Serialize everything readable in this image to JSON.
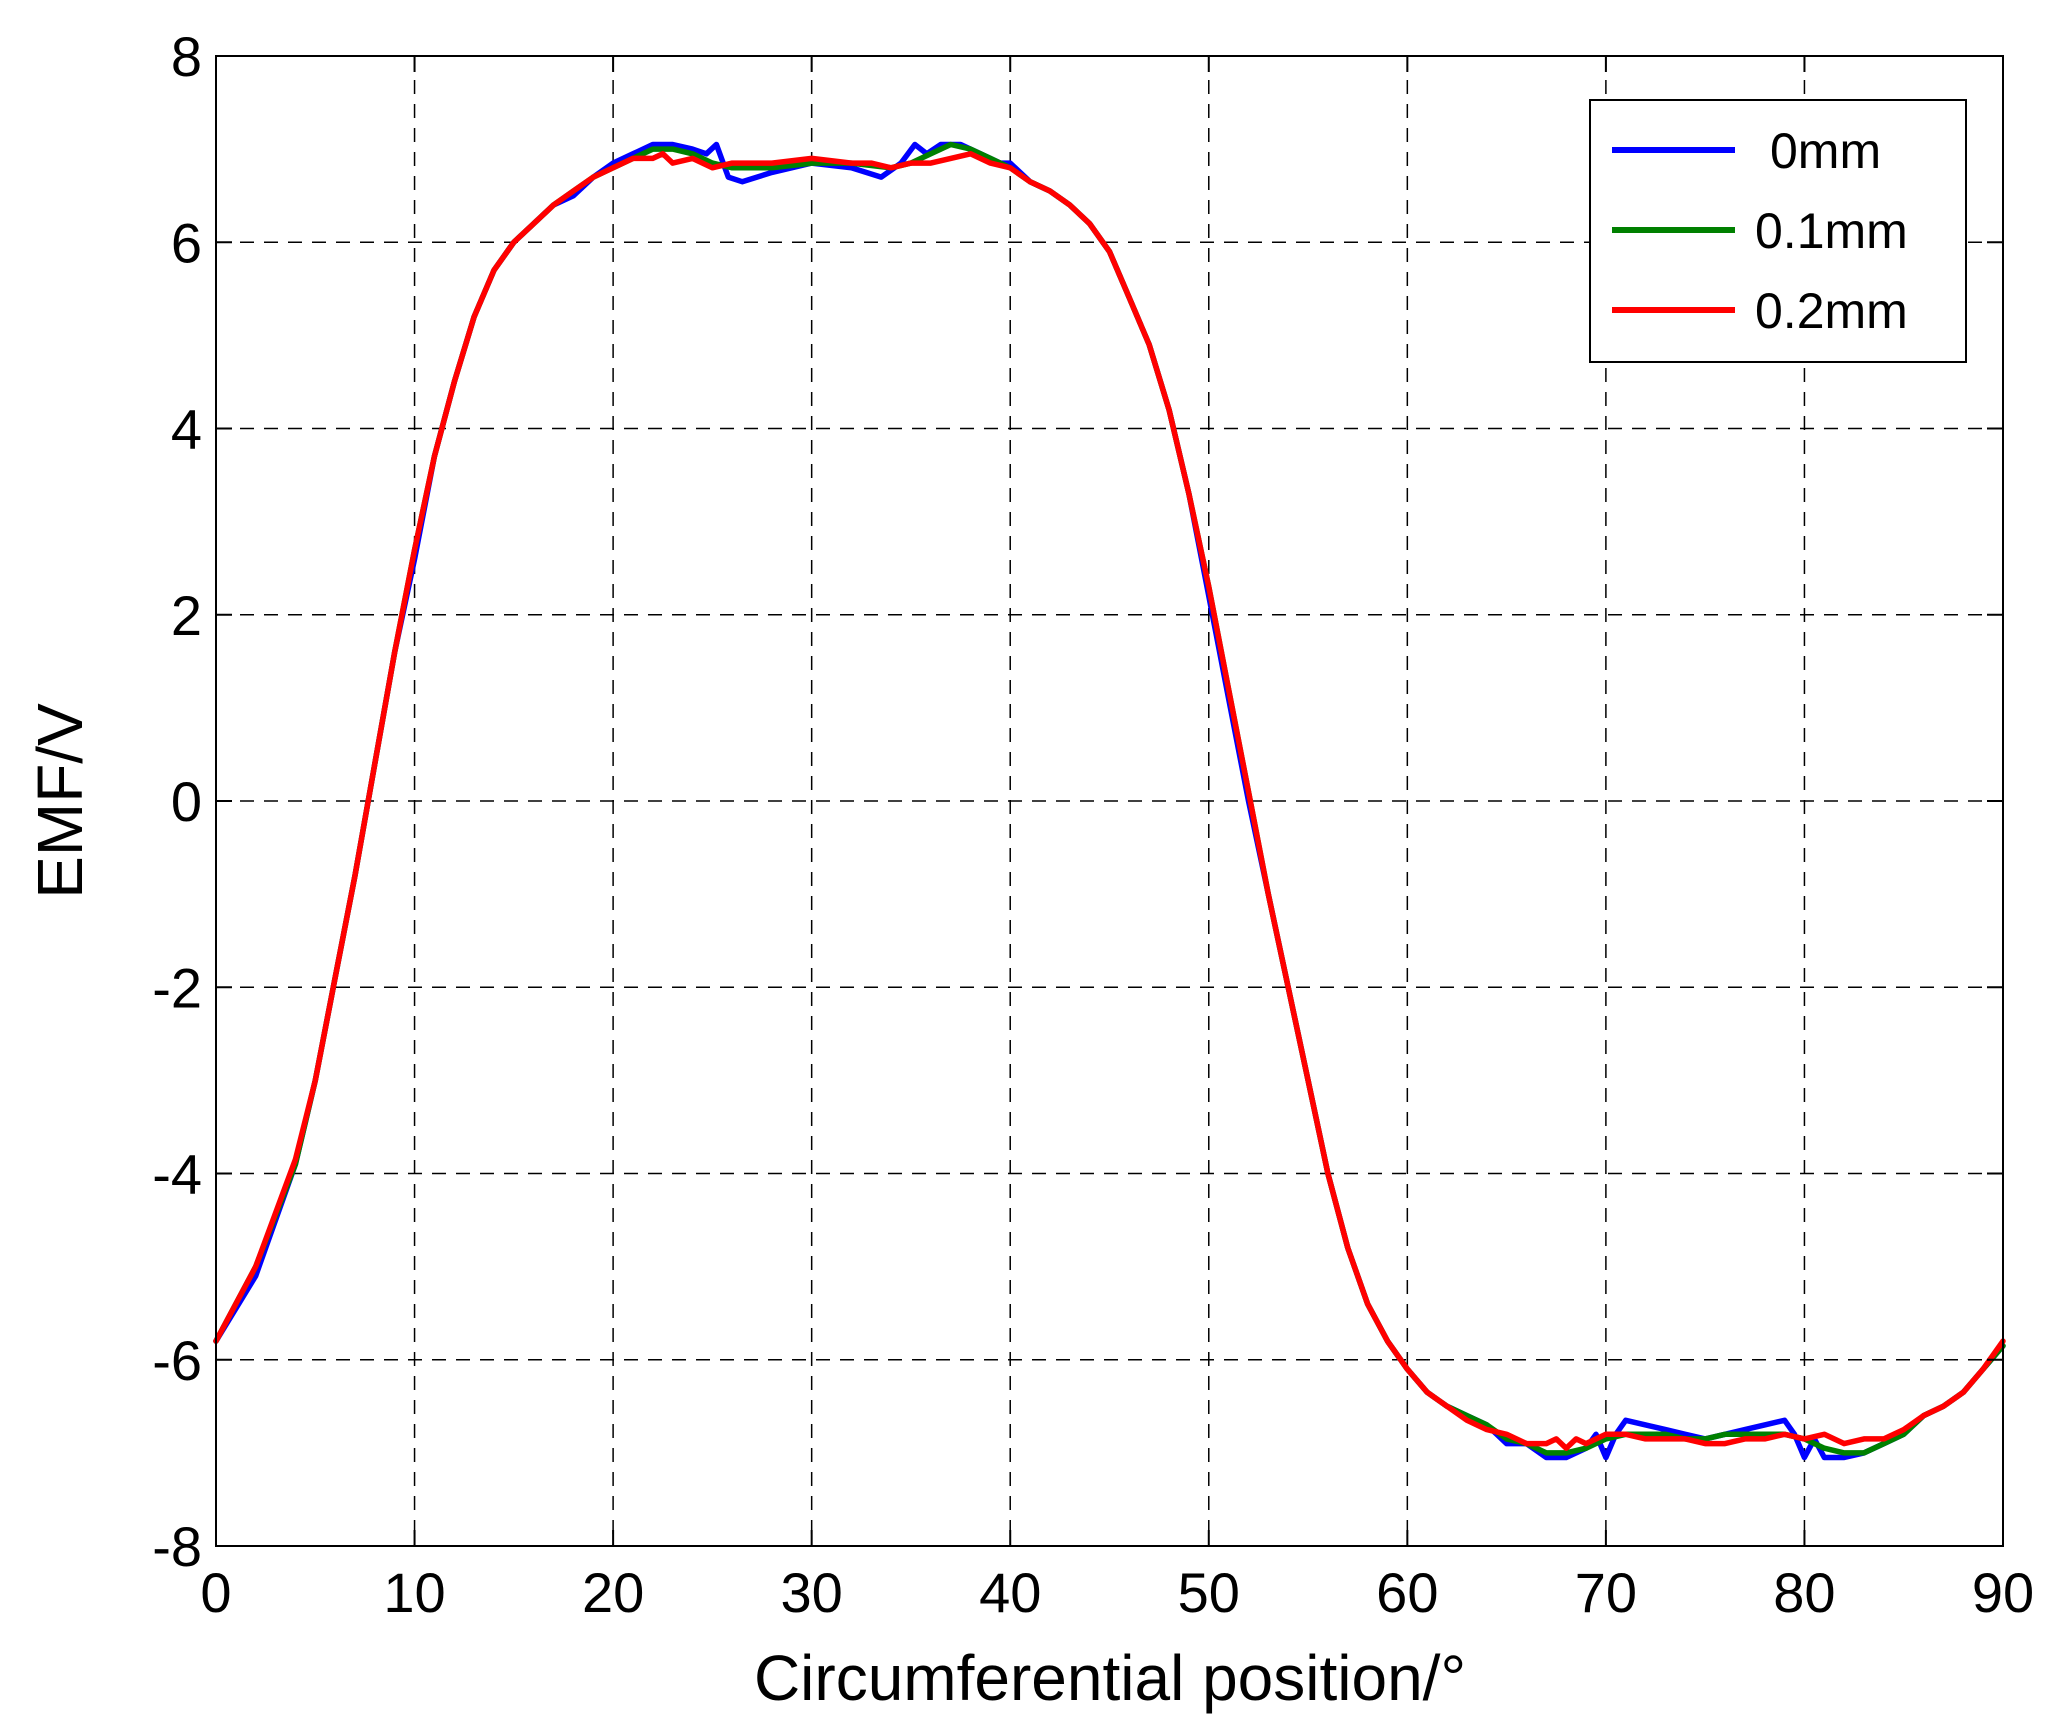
{
  "chart_data": {
    "type": "line",
    "title": "",
    "xlabel": "Circumferential position/°",
    "ylabel": "EMF/V",
    "xlim": [
      0,
      90
    ],
    "ylim": [
      -8,
      8
    ],
    "xticks": [
      0,
      10,
      20,
      30,
      40,
      50,
      60,
      70,
      80,
      90
    ],
    "yticks": [
      -8,
      -6,
      -4,
      -2,
      0,
      2,
      4,
      6,
      8
    ],
    "xtick_labels": [
      "0",
      "10",
      "20",
      "30",
      "40",
      "50",
      "60",
      "70",
      "80",
      "90"
    ],
    "ytick_labels": [
      "-8",
      "-6",
      "-4",
      "-2",
      "0",
      "2",
      "4",
      "6",
      "8"
    ],
    "grid": true,
    "legend_position": "top-right",
    "series": [
      {
        "name": "0mm",
        "color": "#0000ff",
        "points": [
          [
            0,
            -5.8
          ],
          [
            2,
            -5.1
          ],
          [
            4,
            -3.9
          ],
          [
            5,
            -3.0
          ],
          [
            6,
            -1.9
          ],
          [
            7,
            -0.8
          ],
          [
            8,
            0.4
          ],
          [
            9,
            1.6
          ],
          [
            10,
            2.6
          ],
          [
            11,
            3.7
          ],
          [
            12,
            4.5
          ],
          [
            13,
            5.2
          ],
          [
            14,
            5.7
          ],
          [
            15,
            6.0
          ],
          [
            16,
            6.2
          ],
          [
            17,
            6.4
          ],
          [
            18,
            6.5
          ],
          [
            19,
            6.7
          ],
          [
            20,
            6.85
          ],
          [
            21,
            6.95
          ],
          [
            22,
            7.05
          ],
          [
            23,
            7.05
          ],
          [
            24,
            7.0
          ],
          [
            24.7,
            6.95
          ],
          [
            25.2,
            7.05
          ],
          [
            25.8,
            6.7
          ],
          [
            26.5,
            6.65
          ],
          [
            28,
            6.75
          ],
          [
            30,
            6.85
          ],
          [
            32,
            6.8
          ],
          [
            33.5,
            6.7
          ],
          [
            34.5,
            6.85
          ],
          [
            35.2,
            7.05
          ],
          [
            35.8,
            6.95
          ],
          [
            36.5,
            7.05
          ],
          [
            37.5,
            7.05
          ],
          [
            38.5,
            6.95
          ],
          [
            39.5,
            6.85
          ],
          [
            40,
            6.85
          ],
          [
            41,
            6.65
          ],
          [
            42,
            6.55
          ],
          [
            43,
            6.4
          ],
          [
            44,
            6.2
          ],
          [
            45,
            5.9
          ],
          [
            46,
            5.4
          ],
          [
            47,
            4.9
          ],
          [
            48,
            4.2
          ],
          [
            49,
            3.3
          ],
          [
            50,
            2.2
          ],
          [
            51,
            1.1
          ],
          [
            52,
            0.0
          ],
          [
            53,
            -1.0
          ],
          [
            54,
            -2.0
          ],
          [
            55,
            -3.0
          ],
          [
            56,
            -4.0
          ],
          [
            57,
            -4.8
          ],
          [
            58,
            -5.4
          ],
          [
            59,
            -5.8
          ],
          [
            60,
            -6.1
          ],
          [
            61,
            -6.35
          ],
          [
            62,
            -6.5
          ],
          [
            63,
            -6.6
          ],
          [
            64,
            -6.7
          ],
          [
            65,
            -6.9
          ],
          [
            66,
            -6.9
          ],
          [
            67,
            -7.05
          ],
          [
            68,
            -7.05
          ],
          [
            69,
            -6.95
          ],
          [
            69.5,
            -6.8
          ],
          [
            70,
            -7.05
          ],
          [
            70.5,
            -6.8
          ],
          [
            71,
            -6.65
          ],
          [
            72,
            -6.7
          ],
          [
            73,
            -6.75
          ],
          [
            74,
            -6.8
          ],
          [
            75,
            -6.85
          ],
          [
            76,
            -6.8
          ],
          [
            77,
            -6.75
          ],
          [
            78,
            -6.7
          ],
          [
            79,
            -6.65
          ],
          [
            79.5,
            -6.8
          ],
          [
            80,
            -7.05
          ],
          [
            80.5,
            -6.85
          ],
          [
            81,
            -7.05
          ],
          [
            82,
            -7.05
          ],
          [
            83,
            -7.0
          ],
          [
            84,
            -6.9
          ],
          [
            85,
            -6.8
          ],
          [
            86,
            -6.6
          ],
          [
            87,
            -6.5
          ],
          [
            88,
            -6.35
          ],
          [
            89,
            -6.1
          ],
          [
            90,
            -5.85
          ]
        ]
      },
      {
        "name": "0.1mm",
        "color": "#008000",
        "points": [
          [
            0,
            -5.8
          ],
          [
            2,
            -5.0
          ],
          [
            4,
            -3.9
          ],
          [
            5,
            -3.0
          ],
          [
            6,
            -1.9
          ],
          [
            7,
            -0.8
          ],
          [
            8,
            0.4
          ],
          [
            9,
            1.6
          ],
          [
            10,
            2.7
          ],
          [
            11,
            3.7
          ],
          [
            12,
            4.5
          ],
          [
            13,
            5.2
          ],
          [
            14,
            5.7
          ],
          [
            15,
            6.0
          ],
          [
            16,
            6.2
          ],
          [
            17,
            6.4
          ],
          [
            18,
            6.55
          ],
          [
            19,
            6.7
          ],
          [
            20,
            6.8
          ],
          [
            21,
            6.9
          ],
          [
            22,
            7.0
          ],
          [
            23,
            7.0
          ],
          [
            24,
            6.95
          ],
          [
            25,
            6.85
          ],
          [
            26,
            6.8
          ],
          [
            28,
            6.8
          ],
          [
            30,
            6.85
          ],
          [
            32,
            6.85
          ],
          [
            34,
            6.8
          ],
          [
            35,
            6.85
          ],
          [
            36,
            6.95
          ],
          [
            37,
            7.05
          ],
          [
            38,
            7.0
          ],
          [
            39,
            6.9
          ],
          [
            40,
            6.8
          ],
          [
            41,
            6.65
          ],
          [
            42,
            6.55
          ],
          [
            43,
            6.4
          ],
          [
            44,
            6.2
          ],
          [
            45,
            5.9
          ],
          [
            46,
            5.4
          ],
          [
            47,
            4.9
          ],
          [
            48,
            4.2
          ],
          [
            49,
            3.3
          ],
          [
            50,
            2.3
          ],
          [
            51,
            1.2
          ],
          [
            52,
            0.1
          ],
          [
            53,
            -1.0
          ],
          [
            54,
            -2.0
          ],
          [
            55,
            -3.0
          ],
          [
            56,
            -4.0
          ],
          [
            57,
            -4.8
          ],
          [
            58,
            -5.4
          ],
          [
            59,
            -5.8
          ],
          [
            60,
            -6.1
          ],
          [
            61,
            -6.35
          ],
          [
            62,
            -6.5
          ],
          [
            63,
            -6.6
          ],
          [
            64,
            -6.7
          ],
          [
            65,
            -6.85
          ],
          [
            66,
            -6.9
          ],
          [
            67,
            -7.0
          ],
          [
            68,
            -7.0
          ],
          [
            69,
            -6.95
          ],
          [
            70,
            -6.85
          ],
          [
            71,
            -6.8
          ],
          [
            72,
            -6.8
          ],
          [
            73,
            -6.8
          ],
          [
            74,
            -6.85
          ],
          [
            75,
            -6.85
          ],
          [
            76,
            -6.8
          ],
          [
            77,
            -6.8
          ],
          [
            78,
            -6.8
          ],
          [
            79,
            -6.8
          ],
          [
            80,
            -6.85
          ],
          [
            81,
            -6.95
          ],
          [
            82,
            -7.0
          ],
          [
            83,
            -7.0
          ],
          [
            84,
            -6.9
          ],
          [
            85,
            -6.8
          ],
          [
            86,
            -6.6
          ],
          [
            87,
            -6.5
          ],
          [
            88,
            -6.35
          ],
          [
            89,
            -6.1
          ],
          [
            90,
            -5.85
          ]
        ]
      },
      {
        "name": "0.2mm",
        "color": "#ff0000",
        "points": [
          [
            0,
            -5.8
          ],
          [
            2,
            -5.0
          ],
          [
            4,
            -3.85
          ],
          [
            5,
            -3.0
          ],
          [
            6,
            -1.9
          ],
          [
            7,
            -0.8
          ],
          [
            8,
            0.4
          ],
          [
            9,
            1.6
          ],
          [
            10,
            2.7
          ],
          [
            11,
            3.7
          ],
          [
            12,
            4.5
          ],
          [
            13,
            5.2
          ],
          [
            14,
            5.7
          ],
          [
            15,
            6.0
          ],
          [
            16,
            6.2
          ],
          [
            17,
            6.4
          ],
          [
            18,
            6.55
          ],
          [
            19,
            6.7
          ],
          [
            20,
            6.8
          ],
          [
            21,
            6.9
          ],
          [
            22,
            6.9
          ],
          [
            22.5,
            6.95
          ],
          [
            23,
            6.85
          ],
          [
            24,
            6.9
          ],
          [
            25,
            6.8
          ],
          [
            26,
            6.85
          ],
          [
            28,
            6.85
          ],
          [
            30,
            6.9
          ],
          [
            32,
            6.85
          ],
          [
            33,
            6.85
          ],
          [
            34,
            6.8
          ],
          [
            35,
            6.85
          ],
          [
            36,
            6.85
          ],
          [
            37,
            6.9
          ],
          [
            38,
            6.95
          ],
          [
            39,
            6.85
          ],
          [
            40,
            6.8
          ],
          [
            41,
            6.65
          ],
          [
            42,
            6.55
          ],
          [
            43,
            6.4
          ],
          [
            44,
            6.2
          ],
          [
            45,
            5.9
          ],
          [
            46,
            5.4
          ],
          [
            47,
            4.9
          ],
          [
            48,
            4.2
          ],
          [
            49,
            3.3
          ],
          [
            50,
            2.3
          ],
          [
            51,
            1.2
          ],
          [
            52,
            0.1
          ],
          [
            53,
            -1.0
          ],
          [
            54,
            -2.0
          ],
          [
            55,
            -3.0
          ],
          [
            56,
            -4.0
          ],
          [
            57,
            -4.8
          ],
          [
            58,
            -5.4
          ],
          [
            59,
            -5.8
          ],
          [
            60,
            -6.1
          ],
          [
            61,
            -6.35
          ],
          [
            62,
            -6.5
          ],
          [
            63,
            -6.65
          ],
          [
            64,
            -6.75
          ],
          [
            65,
            -6.8
          ],
          [
            66,
            -6.9
          ],
          [
            67,
            -6.9
          ],
          [
            67.5,
            -6.85
          ],
          [
            68,
            -6.95
          ],
          [
            68.5,
            -6.85
          ],
          [
            69,
            -6.9
          ],
          [
            70,
            -6.8
          ],
          [
            71,
            -6.8
          ],
          [
            72,
            -6.85
          ],
          [
            73,
            -6.85
          ],
          [
            74,
            -6.85
          ],
          [
            75,
            -6.9
          ],
          [
            76,
            -6.9
          ],
          [
            77,
            -6.85
          ],
          [
            78,
            -6.85
          ],
          [
            79,
            -6.8
          ],
          [
            80,
            -6.85
          ],
          [
            81,
            -6.8
          ],
          [
            82,
            -6.9
          ],
          [
            83,
            -6.85
          ],
          [
            84,
            -6.85
          ],
          [
            85,
            -6.75
          ],
          [
            86,
            -6.6
          ],
          [
            87,
            -6.5
          ],
          [
            88,
            -6.35
          ],
          [
            89,
            -6.1
          ],
          [
            90,
            -5.8
          ]
        ]
      }
    ]
  }
}
